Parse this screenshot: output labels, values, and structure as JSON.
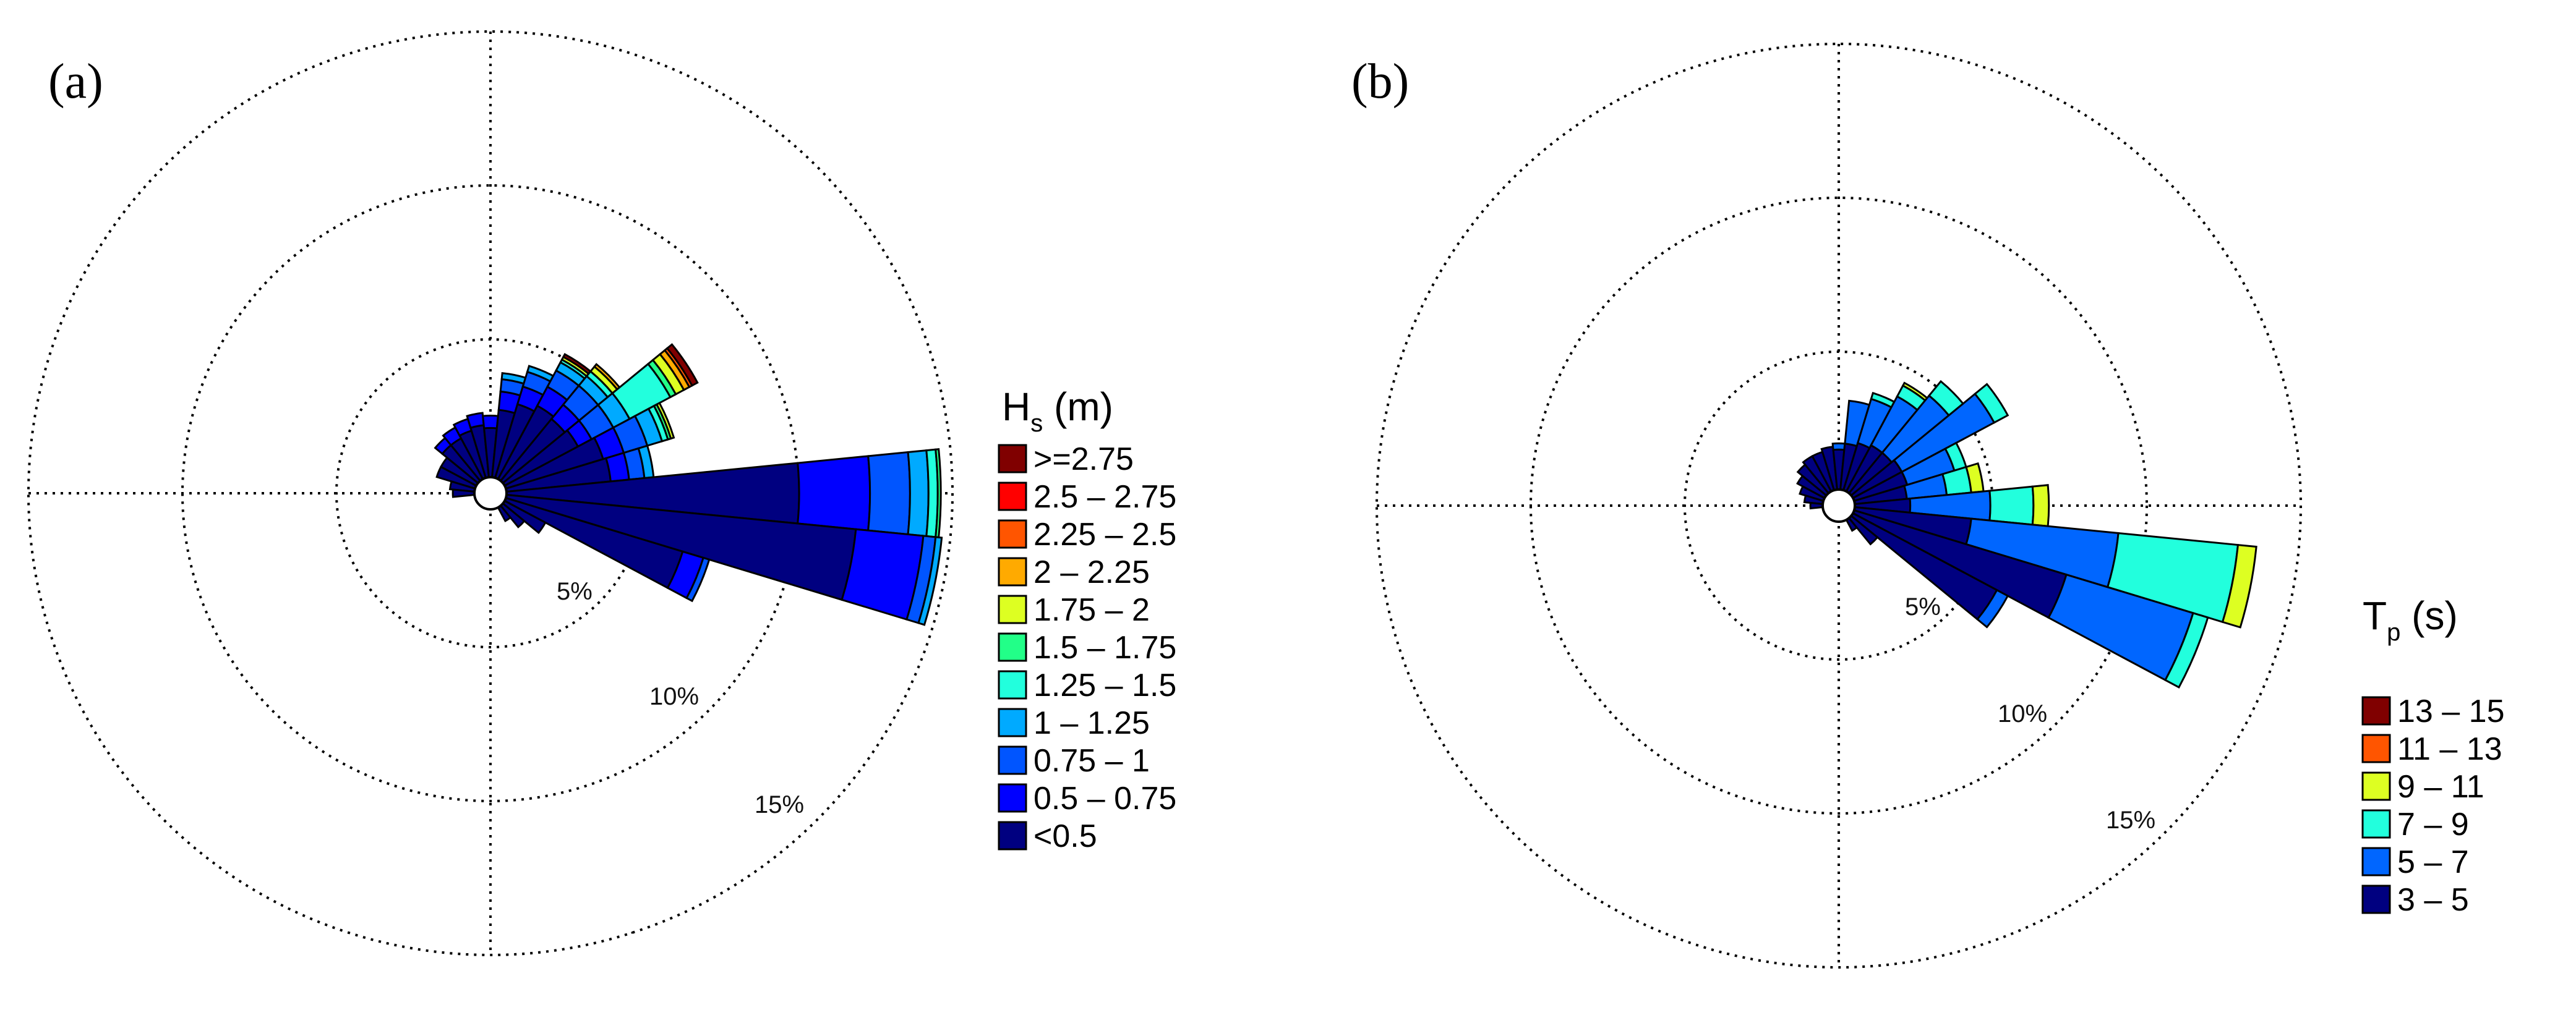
{
  "chart_data": [
    {
      "type": "wind-rose",
      "panel_label": "(a)",
      "legend_title": "H",
      "legend_title_sub": "s",
      "legend_title_suffix": " (m)",
      "radial_unit": "%",
      "ring_labels": [
        "5%",
        "10%",
        "15%"
      ],
      "rings": [
        5,
        10,
        15
      ],
      "rmax": 15,
      "grid": true,
      "bins": [
        {
          "label": ">=2.75",
          "color": "#800000"
        },
        {
          "label": "2.5 – 2.75",
          "color": "#FF0000"
        },
        {
          "label": "2.25 – 2.5",
          "color": "#FF5500"
        },
        {
          "label": "2 – 2.25",
          "color": "#FFAA00"
        },
        {
          "label": "1.75 – 2",
          "color": "#DDFF22"
        },
        {
          "label": "1.5 – 1.75",
          "color": "#22FF88"
        },
        {
          "label": "1.25 – 1.5",
          "color": "#22FFDD"
        },
        {
          "label": "1 – 1.25",
          "color": "#00AAFF"
        },
        {
          "label": "0.75 – 1",
          "color": "#0055FF"
        },
        {
          "label": "0.5 – 0.75",
          "color": "#0000FF"
        },
        {
          "label": "<0.5",
          "color": "#000080"
        }
      ],
      "sectors": [
        {
          "direction_deg": 292.5,
          "segments": [
            {
              "bin": "<0.5",
              "value": 1.3
            }
          ]
        },
        {
          "direction_deg": 303.75,
          "segments": [
            {
              "bin": "<0.5",
              "value": 1.3
            }
          ]
        },
        {
          "direction_deg": 315,
          "segments": [
            {
              "bin": "<0.5",
              "value": 1.5
            },
            {
              "bin": "0.5 – 0.75",
              "value": 0.3
            }
          ]
        },
        {
          "direction_deg": 326.25,
          "segments": [
            {
              "bin": "<0.5",
              "value": 1.5
            },
            {
              "bin": "0.5 – 0.75",
              "value": 0.4
            }
          ]
        },
        {
          "direction_deg": 337.5,
          "segments": [
            {
              "bin": "<0.5",
              "value": 1.6
            },
            {
              "bin": "0.5 – 0.75",
              "value": 0.4
            }
          ]
        },
        {
          "direction_deg": 348.75,
          "segments": [
            {
              "bin": "<0.5",
              "value": 1.7
            },
            {
              "bin": "0.5 – 0.75",
              "value": 0.4
            }
          ]
        },
        {
          "direction_deg": 0,
          "segments": [
            {
              "bin": "<0.5",
              "value": 1.6
            },
            {
              "bin": "0.5 – 0.75",
              "value": 0.4
            }
          ]
        },
        {
          "direction_deg": 11.25,
          "segments": [
            {
              "bin": "<0.5",
              "value": 2.2
            },
            {
              "bin": "0.5 – 0.75",
              "value": 0.6
            },
            {
              "bin": "0.75 – 1",
              "value": 0.4
            },
            {
              "bin": "1 – 1.25",
              "value": 0.2
            }
          ]
        },
        {
          "direction_deg": 22.5,
          "segments": [
            {
              "bin": "<0.5",
              "value": 2.5
            },
            {
              "bin": "0.5 – 0.75",
              "value": 0.6
            },
            {
              "bin": "0.75 – 1",
              "value": 0.5
            },
            {
              "bin": "1 – 1.25",
              "value": 0.2
            }
          ]
        },
        {
          "direction_deg": 33.75,
          "segments": [
            {
              "bin": "<0.5",
              "value": 2.7
            },
            {
              "bin": "0.5 – 0.75",
              "value": 0.7
            },
            {
              "bin": "0.75 – 1",
              "value": 0.6
            },
            {
              "bin": "1 – 1.25",
              "value": 0.3
            },
            {
              "bin": "1.25 – 1.5",
              "value": 0.1
            },
            {
              "bin": "1.75 – 2",
              "value": 0.1
            },
            {
              "bin": ">=2.75",
              "value": 0.1
            }
          ]
        },
        {
          "direction_deg": 45,
          "segments": [
            {
              "bin": "<0.5",
              "value": 2.6
            },
            {
              "bin": "0.5 – 0.75",
              "value": 0.6
            },
            {
              "bin": "0.75 – 1",
              "value": 0.8
            },
            {
              "bin": "1 – 1.25",
              "value": 0.4
            },
            {
              "bin": "1.25 – 1.5",
              "value": 0.2
            },
            {
              "bin": "1.75 – 2",
              "value": 0.2
            },
            {
              "bin": "2 – 2.25",
              "value": 0.1
            }
          ]
        },
        {
          "direction_deg": 56.25,
          "segments": [
            {
              "bin": "<0.5",
              "value": 2.7
            },
            {
              "bin": "0.5 – 0.75",
              "value": 0.5
            },
            {
              "bin": "0.75 – 1",
              "value": 0.8
            },
            {
              "bin": "1 – 1.25",
              "value": 0.6
            },
            {
              "bin": "1.25 – 1.5",
              "value": 1.5
            },
            {
              "bin": "1.5 – 1.75",
              "value": 0.2
            },
            {
              "bin": "1.75 – 2",
              "value": 0.3
            },
            {
              "bin": "2 – 2.25",
              "value": 0.2
            },
            {
              "bin": "2.25 – 2.5",
              "value": 0.1
            },
            {
              "bin": ">=2.75",
              "value": 0.2
            }
          ]
        },
        {
          "direction_deg": 67.5,
          "segments": [
            {
              "bin": "<0.5",
              "value": 3.3
            },
            {
              "bin": "0.5 – 0.75",
              "value": 0.7
            },
            {
              "bin": "0.75 – 1",
              "value": 0.8
            },
            {
              "bin": "1 – 1.25",
              "value": 0.5
            },
            {
              "bin": "1.25 – 1.5",
              "value": 0.2
            },
            {
              "bin": "1.5 – 1.75",
              "value": 0.1
            },
            {
              "bin": "1.75 – 2",
              "value": 0.1
            }
          ]
        },
        {
          "direction_deg": 78.75,
          "segments": [
            {
              "bin": "<0.5",
              "value": 3.4
            },
            {
              "bin": "0.5 – 0.75",
              "value": 0.6
            },
            {
              "bin": "0.75 – 1",
              "value": 0.5
            },
            {
              "bin": "1 – 1.25",
              "value": 0.3
            }
          ]
        },
        {
          "direction_deg": 90,
          "segments": [
            {
              "bin": "<0.5",
              "value": 9.5
            },
            {
              "bin": "0.5 – 0.75",
              "value": 2.3
            },
            {
              "bin": "0.75 – 1",
              "value": 1.3
            },
            {
              "bin": "1 – 1.25",
              "value": 0.6
            },
            {
              "bin": "1.25 – 1.5",
              "value": 0.3
            },
            {
              "bin": "1.5 – 1.75",
              "value": 0.1
            }
          ]
        },
        {
          "direction_deg": 101.25,
          "segments": [
            {
              "bin": "<0.5",
              "value": 11.4
            },
            {
              "bin": "0.5 – 0.75",
              "value": 2.2
            },
            {
              "bin": "0.75 – 1",
              "value": 0.4
            },
            {
              "bin": "1 – 1.25",
              "value": 0.2
            }
          ]
        },
        {
          "direction_deg": 112.5,
          "segments": [
            {
              "bin": "<0.5",
              "value": 6.0
            },
            {
              "bin": "0.5 – 0.75",
              "value": 0.7
            },
            {
              "bin": "0.75 – 1",
              "value": 0.2
            }
          ]
        },
        {
          "direction_deg": 123.75,
          "segments": [
            {
              "bin": "<0.5",
              "value": 1.5
            }
          ]
        },
        {
          "direction_deg": 135,
          "segments": [
            {
              "bin": "<0.5",
              "value": 0.9
            }
          ]
        },
        {
          "direction_deg": 146.25,
          "segments": [
            {
              "bin": "<0.5",
              "value": 0.5
            }
          ]
        },
        {
          "direction_deg": 281.25,
          "segments": [
            {
              "bin": "<0.5",
              "value": 0.8
            }
          ]
        },
        {
          "direction_deg": 270,
          "segments": [
            {
              "bin": "<0.5",
              "value": 0.7
            }
          ]
        }
      ]
    },
    {
      "type": "wind-rose",
      "panel_label": "(b)",
      "legend_title": "T",
      "legend_title_sub": "p",
      "legend_title_suffix": " (s)",
      "radial_unit": "%",
      "ring_labels": [
        "5%",
        "10%",
        "15%"
      ],
      "rings": [
        5,
        10,
        15
      ],
      "rmax": 15,
      "grid": true,
      "bins": [
        {
          "label": "13 – 15",
          "color": "#800000"
        },
        {
          "label": "11 – 13",
          "color": "#FF5500"
        },
        {
          "label": "9 – 11",
          "color": "#DDFF22"
        },
        {
          "label": "7 – 9",
          "color": "#22FFDD"
        },
        {
          "label": "5 – 7",
          "color": "#0066FF"
        },
        {
          "label": "3 – 5",
          "color": "#000080"
        }
      ],
      "sectors": [
        {
          "direction_deg": 292.5,
          "segments": [
            {
              "bin": "3 – 5",
              "value": 0.8
            }
          ]
        },
        {
          "direction_deg": 303.75,
          "segments": [
            {
              "bin": "3 – 5",
              "value": 1.0
            }
          ]
        },
        {
          "direction_deg": 315,
          "segments": [
            {
              "bin": "3 – 5",
              "value": 1.2
            }
          ]
        },
        {
          "direction_deg": 326.25,
          "segments": [
            {
              "bin": "3 – 5",
              "value": 1.3
            }
          ]
        },
        {
          "direction_deg": 337.5,
          "segments": [
            {
              "bin": "3 – 5",
              "value": 1.3
            }
          ]
        },
        {
          "direction_deg": 348.75,
          "segments": [
            {
              "bin": "3 – 5",
              "value": 1.4
            }
          ]
        },
        {
          "direction_deg": 0,
          "segments": [
            {
              "bin": "3 – 5",
              "value": 1.3
            },
            {
              "bin": "5 – 7",
              "value": 0.2
            }
          ]
        },
        {
          "direction_deg": 11.25,
          "segments": [
            {
              "bin": "3 – 5",
              "value": 1.5
            },
            {
              "bin": "5 – 7",
              "value": 1.4
            }
          ]
        },
        {
          "direction_deg": 22.5,
          "segments": [
            {
              "bin": "3 – 5",
              "value": 1.6
            },
            {
              "bin": "5 – 7",
              "value": 1.5
            },
            {
              "bin": "7 – 9",
              "value": 0.2
            }
          ]
        },
        {
          "direction_deg": 33.75,
          "segments": [
            {
              "bin": "3 – 5",
              "value": 1.7
            },
            {
              "bin": "5 – 7",
              "value": 1.8
            },
            {
              "bin": "7 – 9",
              "value": 0.4
            },
            {
              "bin": "9 – 11",
              "value": 0.1
            }
          ]
        },
        {
          "direction_deg": 45,
          "segments": [
            {
              "bin": "3 – 5",
              "value": 1.7
            },
            {
              "bin": "5 – 7",
              "value": 2.4
            },
            {
              "bin": "7 – 9",
              "value": 0.6
            }
          ]
        },
        {
          "direction_deg": 56.25,
          "segments": [
            {
              "bin": "3 – 5",
              "value": 1.8
            },
            {
              "bin": "5 – 7",
              "value": 3.4
            },
            {
              "bin": "7 – 9",
              "value": 0.5
            }
          ]
        },
        {
          "direction_deg": 67.5,
          "segments": [
            {
              "bin": "3 – 5",
              "value": 1.8
            },
            {
              "bin": "5 – 7",
              "value": 1.6
            },
            {
              "bin": "7 – 9",
              "value": 0.4
            }
          ]
        },
        {
          "direction_deg": 78.75,
          "segments": [
            {
              "bin": "3 – 5",
              "value": 1.7
            },
            {
              "bin": "5 – 7",
              "value": 1.3
            },
            {
              "bin": "7 – 9",
              "value": 0.8
            },
            {
              "bin": "9 – 11",
              "value": 0.4
            }
          ]
        },
        {
          "direction_deg": 90,
          "segments": [
            {
              "bin": "3 – 5",
              "value": 1.8
            },
            {
              "bin": "5 – 7",
              "value": 2.6
            },
            {
              "bin": "7 – 9",
              "value": 1.4
            },
            {
              "bin": "9 – 11",
              "value": 0.5
            }
          ]
        },
        {
          "direction_deg": 101.25,
          "segments": [
            {
              "bin": "3 – 5",
              "value": 3.8
            },
            {
              "bin": "5 – 7",
              "value": 4.8
            },
            {
              "bin": "7 – 9",
              "value": 3.9
            },
            {
              "bin": "9 – 11",
              "value": 0.6
            }
          ]
        },
        {
          "direction_deg": 112.5,
          "segments": [
            {
              "bin": "3 – 5",
              "value": 7.2
            },
            {
              "bin": "5 – 7",
              "value": 4.3
            },
            {
              "bin": "7 – 9",
              "value": 0.5
            }
          ]
        },
        {
          "direction_deg": 123.75,
          "segments": [
            {
              "bin": "3 – 5",
              "value": 5.3
            },
            {
              "bin": "5 – 7",
              "value": 0.4
            }
          ]
        },
        {
          "direction_deg": 135,
          "segments": [
            {
              "bin": "3 – 5",
              "value": 1.1
            }
          ]
        },
        {
          "direction_deg": 146.25,
          "segments": [
            {
              "bin": "3 – 5",
              "value": 0.4
            }
          ]
        },
        {
          "direction_deg": 281.25,
          "segments": [
            {
              "bin": "3 – 5",
              "value": 0.6
            }
          ]
        },
        {
          "direction_deg": 270,
          "segments": [
            {
              "bin": "3 – 5",
              "value": 0.4
            }
          ]
        }
      ]
    }
  ]
}
